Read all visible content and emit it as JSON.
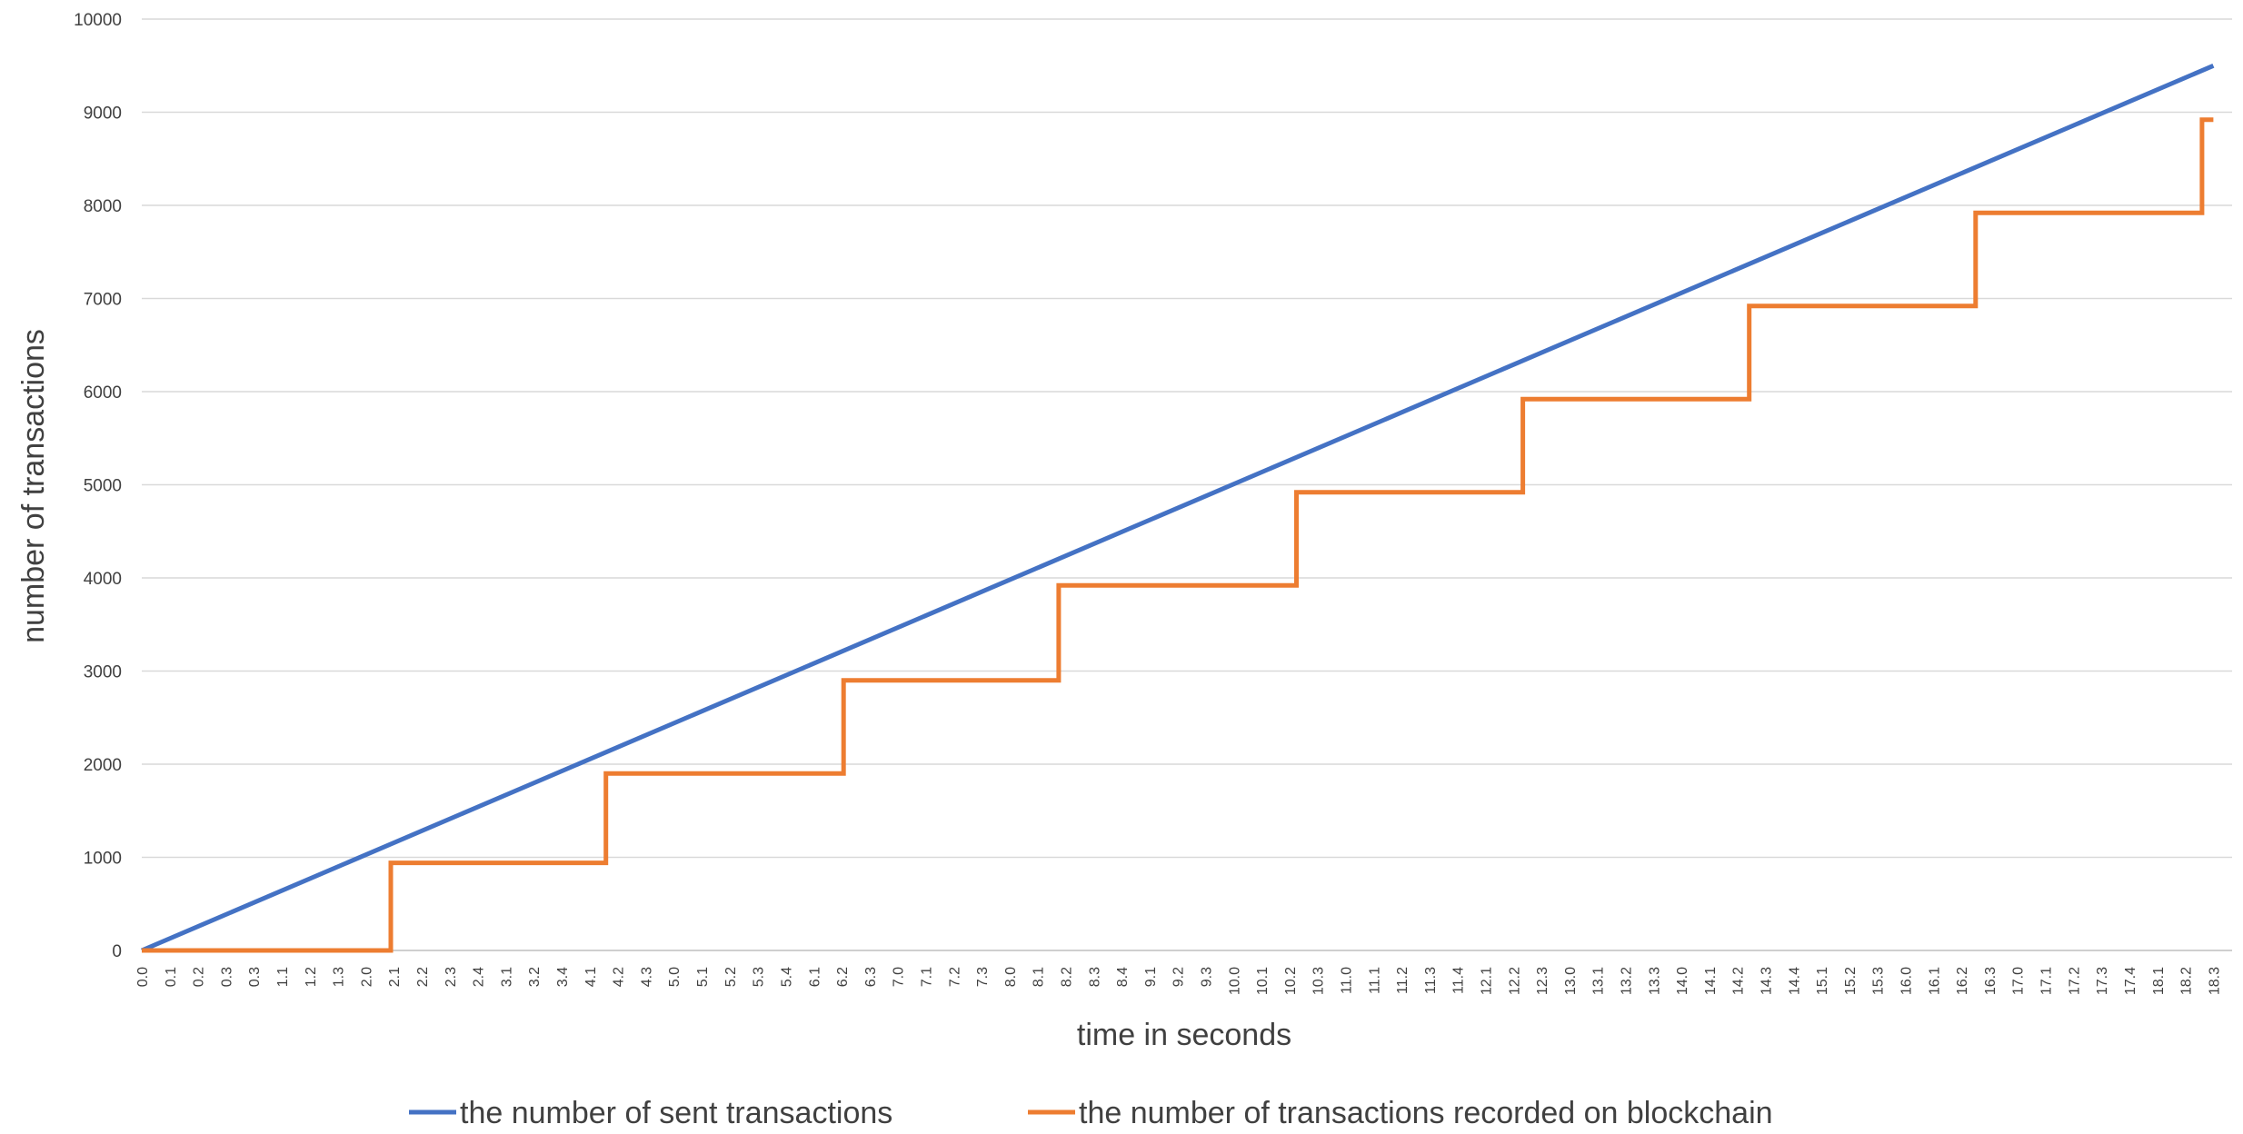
{
  "chart_data": {
    "type": "line",
    "title": "",
    "xlabel": "time in seconds",
    "ylabel": "number of transactions",
    "ylim": [
      0,
      10000
    ],
    "y_ticks": [
      0,
      1000,
      2000,
      3000,
      4000,
      5000,
      6000,
      7000,
      8000,
      9000,
      10000
    ],
    "grid": true,
    "legend_position": "bottom",
    "x_tick_labels": [
      "0.0",
      "0.1",
      "0.2",
      "0.3",
      "0.3",
      "1.1",
      "1.2",
      "1.3",
      "2.0",
      "2.1",
      "2.2",
      "2.3",
      "2.4",
      "3.1",
      "3.2",
      "3.4",
      "4.1",
      "4.2",
      "4.3",
      "5.0",
      "5.1",
      "5.2",
      "5.3",
      "5.4",
      "6.1",
      "6.2",
      "6.3",
      "7.0",
      "7.1",
      "7.2",
      "7.3",
      "8.0",
      "8.1",
      "8.2",
      "8.3",
      "8.4",
      "9.1",
      "9.2",
      "9.3",
      "10.0",
      "10.1",
      "10.2",
      "10.3",
      "11.0",
      "11.1",
      "11.2",
      "11.3",
      "11.4",
      "12.1",
      "12.2",
      "12.3",
      "13.0",
      "13.1",
      "13.2",
      "13.3",
      "14.0",
      "14.1",
      "14.2",
      "14.3",
      "14.4",
      "15.1",
      "15.2",
      "15.3",
      "16.0",
      "16.1",
      "16.2",
      "16.3",
      "17.0",
      "17.1",
      "17.2",
      "17.3",
      "17.4",
      "18.1",
      "18.2",
      "18.3"
    ],
    "series": [
      {
        "name": "the number of sent transactions",
        "color": "#4472C4",
        "x": [
          0.0,
          18.3
        ],
        "y": [
          0,
          9500
        ]
      },
      {
        "name": "the number of transactions recorded on blockchain",
        "color": "#ED7D31",
        "interpolation": "step-after",
        "x": [
          0.0,
          2.2,
          4.1,
          6.2,
          8.1,
          10.2,
          12.2,
          14.2,
          16.2,
          18.2,
          18.3
        ],
        "y": [
          0,
          940,
          1900,
          2900,
          3920,
          4920,
          5920,
          6920,
          7920,
          8920,
          8920
        ]
      }
    ]
  }
}
